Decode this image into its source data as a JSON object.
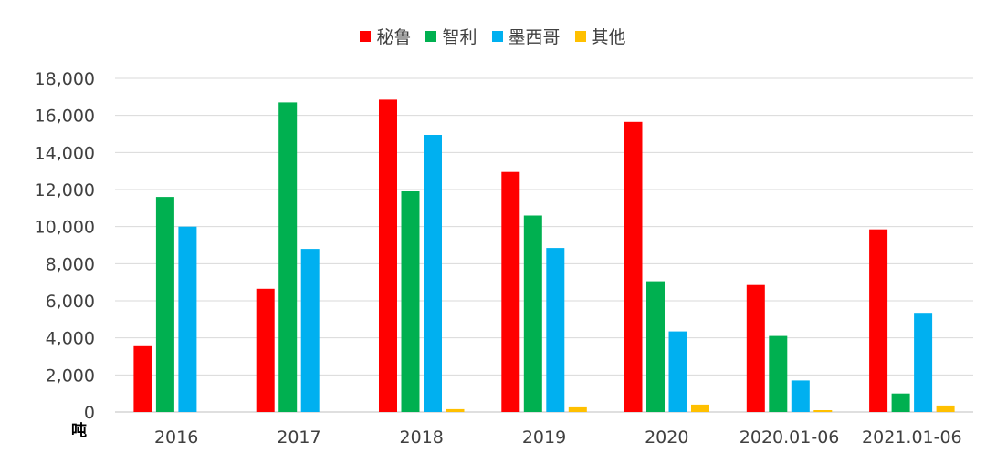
{
  "chart_data": {
    "type": "bar",
    "categories": [
      "2016",
      "2017",
      "2018",
      "2019",
      "2020",
      "2020.01-06",
      "2021.01-06"
    ],
    "series": [
      {
        "name": "秘鲁",
        "color": "#FF0000",
        "values": [
          3550,
          6650,
          16850,
          12950,
          15650,
          6850,
          9850
        ]
      },
      {
        "name": "智利",
        "color": "#00B050",
        "values": [
          11600,
          16700,
          11900,
          10600,
          7050,
          4100,
          1000
        ]
      },
      {
        "name": "墨西哥",
        "color": "#00B0F0",
        "values": [
          10000,
          8800,
          14950,
          8850,
          4350,
          1700,
          5350
        ]
      },
      {
        "name": "其他",
        "color": "#FFC000",
        "values": [
          0,
          0,
          150,
          250,
          400,
          100,
          350
        ]
      }
    ],
    "ylim": [
      0,
      18000
    ],
    "yticks": [
      "0",
      "2,000",
      "4,000",
      "6,000",
      "8,000",
      "10,000",
      "12,000",
      "14,000",
      "16,000",
      "18,000"
    ],
    "unit_label": "吨",
    "grid": true,
    "legend_position": "top"
  }
}
